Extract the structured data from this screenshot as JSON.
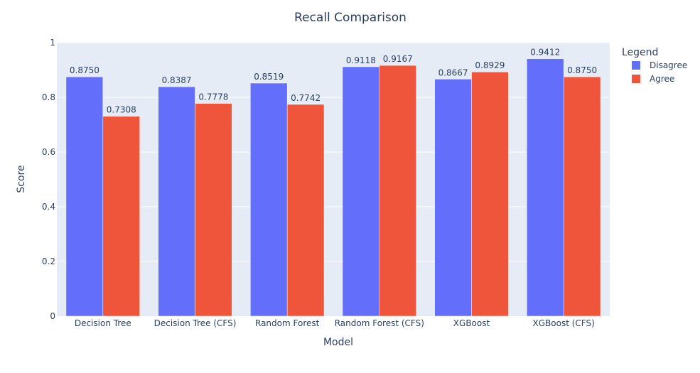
{
  "chart_data": {
    "type": "bar",
    "title": "Recall Comparison",
    "xlabel": "Model",
    "ylabel": "Score",
    "ylim": [
      0,
      1
    ],
    "yticks": [
      "0",
      "0.2",
      "0.4",
      "0.6",
      "0.8",
      "1"
    ],
    "categories": [
      "Decision Tree",
      "Decision Tree (CFS)",
      "Random Forest",
      "Random Forest (CFS)",
      "XGBoost",
      "XGBoost (CFS)"
    ],
    "legend_title": "Legend",
    "legend_position": "top-right",
    "grid": true,
    "series": [
      {
        "name": "Disagree",
        "color": "#636efa",
        "values": [
          0.875,
          0.8387,
          0.8519,
          0.9118,
          0.8667,
          0.9412
        ],
        "labels": [
          "0.8750",
          "0.8387",
          "0.8519",
          "0.9118",
          "0.8667",
          "0.9412"
        ]
      },
      {
        "name": "Agree",
        "color": "#ef553b",
        "values": [
          0.7308,
          0.7778,
          0.7742,
          0.9167,
          0.8929,
          0.875
        ],
        "labels": [
          "0.7308",
          "0.7778",
          "0.7742",
          "0.9167",
          "0.8929",
          "0.8750"
        ]
      }
    ],
    "colors": {
      "plot_bg": "#e5ecf6",
      "grid": "#ffffff",
      "text": "#2a3f5f"
    }
  }
}
